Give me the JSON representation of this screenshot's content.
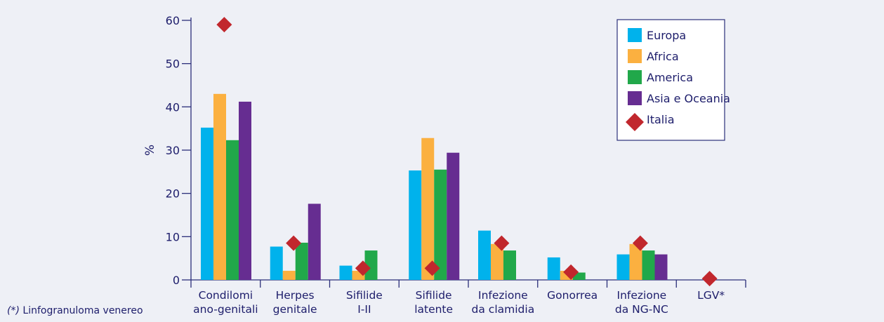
{
  "colors": {
    "panel_bg": "#eef0f6",
    "axis": "#2b2f7a",
    "text": "#1d1d6b",
    "europa": "#00b2ec",
    "africa": "#fbb040",
    "america": "#21a84a",
    "asia": "#662d91",
    "italia": "#c1272d"
  },
  "footnote": {
    "mark": "(*)",
    "text": " Linfogranuloma venereo"
  },
  "chart_data": {
    "type": "bar",
    "title": "",
    "xlabel": "",
    "ylabel": "%",
    "ylim": [
      0,
      60
    ],
    "yticks": [
      0,
      10,
      20,
      30,
      40,
      50,
      60
    ],
    "grid": false,
    "legend_position": "top-right",
    "categories": [
      [
        "Condilomi",
        "ano-genitali"
      ],
      [
        "Herpes",
        "genitale"
      ],
      [
        "Sifilide",
        "I-II"
      ],
      [
        "Sifilide",
        "latente"
      ],
      [
        "Infezione",
        "da clamidia"
      ],
      [
        "Gonorrea"
      ],
      [
        "Infezione",
        "da NG-NC"
      ],
      [
        "LGV*"
      ]
    ],
    "series": [
      {
        "name": "Europa",
        "kind": "bar",
        "color": "#00b2ec",
        "values": [
          35.2,
          7.7,
          3.3,
          25.3,
          11.4,
          5.2,
          5.9,
          0
        ]
      },
      {
        "name": "Africa",
        "kind": "bar",
        "color": "#fbb040",
        "values": [
          43.0,
          2.1,
          2.1,
          32.8,
          8.3,
          2.1,
          8.3,
          0
        ]
      },
      {
        "name": "America",
        "kind": "bar",
        "color": "#21a84a",
        "values": [
          32.3,
          8.6,
          6.8,
          25.5,
          6.8,
          1.7,
          6.8,
          0
        ]
      },
      {
        "name": "Asia e Oceania",
        "kind": "bar",
        "color": "#662d91",
        "values": [
          41.2,
          17.6,
          0,
          29.4,
          0,
          0,
          5.9,
          0
        ]
      },
      {
        "name": "Italia",
        "kind": "marker",
        "color": "#c1272d",
        "values": [
          59.0,
          8.5,
          2.7,
          2.7,
          8.5,
          1.8,
          8.5,
          0.3
        ]
      }
    ]
  }
}
